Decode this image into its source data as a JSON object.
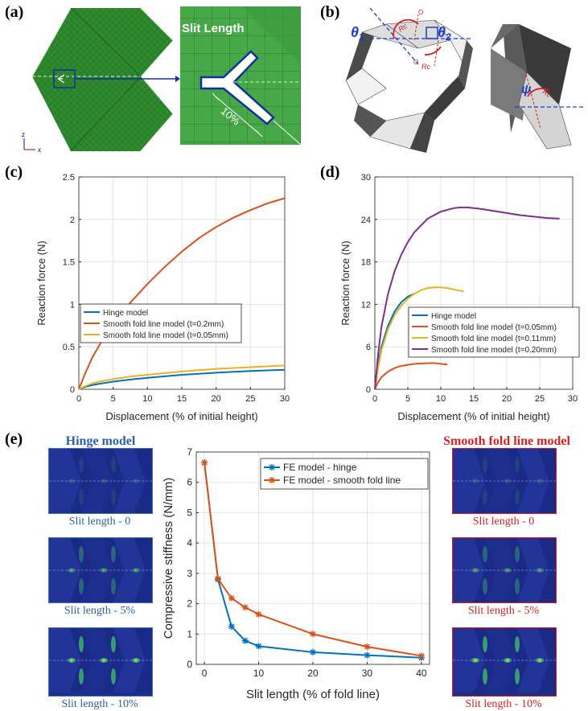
{
  "panels": {
    "a": {
      "label": "(a)",
      "inset_text": "Slit Length",
      "percent": "10%",
      "axis_z": "z",
      "axis_x": "x"
    },
    "b": {
      "label": "(b)",
      "theta1": "θ",
      "theta1_sub": "1",
      "theta2": "θ",
      "theta2_sub": "2",
      "rc": "Rc",
      "o": "O",
      "psi": "ψ"
    },
    "c": {
      "label": "(c)"
    },
    "d": {
      "label": "(d)"
    },
    "e": {
      "label": "(e)",
      "left_title": "Hinge model",
      "right_title": "Smooth fold line model",
      "left_captions": [
        "Slit length - 0",
        "Slit length - 5%",
        "Slit length - 10%"
      ],
      "right_captions": [
        "Slit length - 0",
        "Slit length - 5%",
        "Slit length - 10%"
      ]
    }
  },
  "colors": {
    "blue": "#0072BD",
    "orange": "#D95319",
    "yellow": "#EDB120",
    "purple": "#7E2F8E",
    "mesh": "#2e8a2e"
  },
  "chart_data": [
    {
      "id": "c",
      "type": "line",
      "xlabel": "Displacement (% of initial height)",
      "ylabel": "Reaction force (N)",
      "xlim": [
        0,
        30
      ],
      "ylim": [
        0,
        2.5
      ],
      "xticks": [
        0,
        5,
        10,
        15,
        20,
        25,
        30
      ],
      "yticks": [
        0,
        0.5,
        1,
        1.5,
        2,
        2.5
      ],
      "yticklabels": [
        "0",
        "0.5",
        "1",
        "1.5",
        "2",
        "2.5"
      ],
      "legend": "lower-left",
      "series": [
        {
          "name": "Hinge model",
          "color": "#0072BD",
          "x": [
            0,
            1,
            2,
            3,
            5,
            7.5,
            10,
            15,
            20,
            25,
            30
          ],
          "y": [
            0,
            0.03,
            0.05,
            0.065,
            0.09,
            0.115,
            0.135,
            0.17,
            0.195,
            0.215,
            0.23
          ]
        },
        {
          "name": "Smooth fold line model (t=0.2mm)",
          "color": "#D95319",
          "x": [
            0,
            1,
            2,
            3,
            5,
            7.5,
            10,
            12.5,
            15,
            17.5,
            20,
            22.5,
            25,
            27.5,
            30
          ],
          "y": [
            0,
            0.2,
            0.38,
            0.52,
            0.77,
            1.02,
            1.24,
            1.44,
            1.62,
            1.78,
            1.91,
            2.02,
            2.11,
            2.19,
            2.25
          ]
        },
        {
          "name": "Smooth fold line model (t=0.05mm)",
          "color": "#EDB120",
          "x": [
            0,
            1,
            2,
            3,
            5,
            7.5,
            10,
            15,
            20,
            25,
            30
          ],
          "y": [
            0,
            0.04,
            0.07,
            0.09,
            0.12,
            0.15,
            0.17,
            0.21,
            0.24,
            0.26,
            0.28
          ]
        }
      ]
    },
    {
      "id": "d",
      "type": "line",
      "xlabel": "Displacement (% of initial height)",
      "ylabel": "Reaction force (N)",
      "xlim": [
        0,
        30
      ],
      "ylim": [
        0,
        30
      ],
      "xticks": [
        0,
        5,
        10,
        15,
        20,
        25,
        30
      ],
      "yticks": [
        0,
        6,
        12,
        18,
        24,
        30
      ],
      "yticklabels": [
        "0",
        "6",
        "12",
        "18",
        "24",
        "30"
      ],
      "legend": "center-right",
      "series": [
        {
          "name": "Hinge model",
          "color": "#0072BD",
          "x": [
            0,
            0.5,
            1,
            2,
            3,
            4,
            5,
            6
          ],
          "y": [
            0,
            3.5,
            6,
            9,
            11,
            12.3,
            13.1,
            13.5
          ]
        },
        {
          "name": "Smooth fold line model (t=0.05mm)",
          "color": "#D95319",
          "x": [
            0,
            0.5,
            1,
            2,
            3,
            4,
            6,
            8,
            9,
            11
          ],
          "y": [
            0,
            1,
            1.7,
            2.5,
            3,
            3.3,
            3.6,
            3.7,
            3.7,
            3.5
          ]
        },
        {
          "name": "Smooth fold line model (t=0.11mm)",
          "color": "#EDB120",
          "x": [
            0,
            0.5,
            1,
            2,
            3,
            4,
            5,
            6,
            7,
            8,
            9,
            10,
            11,
            12,
            13.5
          ],
          "y": [
            0,
            3,
            5.5,
            8.5,
            10.5,
            11.8,
            12.8,
            13.5,
            14,
            14.3,
            14.4,
            14.4,
            14.3,
            14.1,
            13.8
          ]
        },
        {
          "name": "Smooth fold line model (t=0.20mm)",
          "color": "#7E2F8E",
          "x": [
            0,
            0.5,
            1,
            2,
            3,
            4,
            5,
            6,
            8,
            10,
            12,
            13,
            14,
            16,
            18,
            20,
            22,
            24,
            26,
            28
          ],
          "y": [
            0,
            5,
            8.8,
            13.5,
            16.7,
            19,
            20.8,
            22.2,
            24.1,
            25.1,
            25.6,
            25.7,
            25.7,
            25.5,
            25.2,
            24.9,
            24.6,
            24.4,
            24.2,
            24.1
          ]
        }
      ]
    },
    {
      "id": "e",
      "type": "line",
      "xlabel": "Slit length (% of fold line)",
      "ylabel": "Compressive stiffness (N/mm)",
      "xlim": [
        -1.5,
        41.5
      ],
      "ylim": [
        0,
        7
      ],
      "xticks": [
        0,
        10,
        20,
        30,
        40
      ],
      "yticks": [
        0,
        1,
        2,
        3,
        4,
        5,
        6,
        7
      ],
      "yticklabels": [
        "0",
        "1",
        "2",
        "3",
        "4",
        "5",
        "6",
        "7"
      ],
      "legend": "top-right",
      "marker": "*",
      "series": [
        {
          "name": "FE model - hinge",
          "color": "#0072BD",
          "x": [
            0,
            2.5,
            5,
            7.5,
            10,
            20,
            30,
            40
          ],
          "y": [
            6.65,
            2.8,
            1.25,
            0.78,
            0.6,
            0.4,
            0.3,
            0.22
          ]
        },
        {
          "name": "FE model - smooth fold line",
          "color": "#D95319",
          "x": [
            0,
            2.5,
            5,
            7.5,
            10,
            20,
            30,
            40
          ],
          "y": [
            6.65,
            2.82,
            2.18,
            1.88,
            1.65,
            1.0,
            0.58,
            0.28
          ]
        }
      ]
    }
  ]
}
